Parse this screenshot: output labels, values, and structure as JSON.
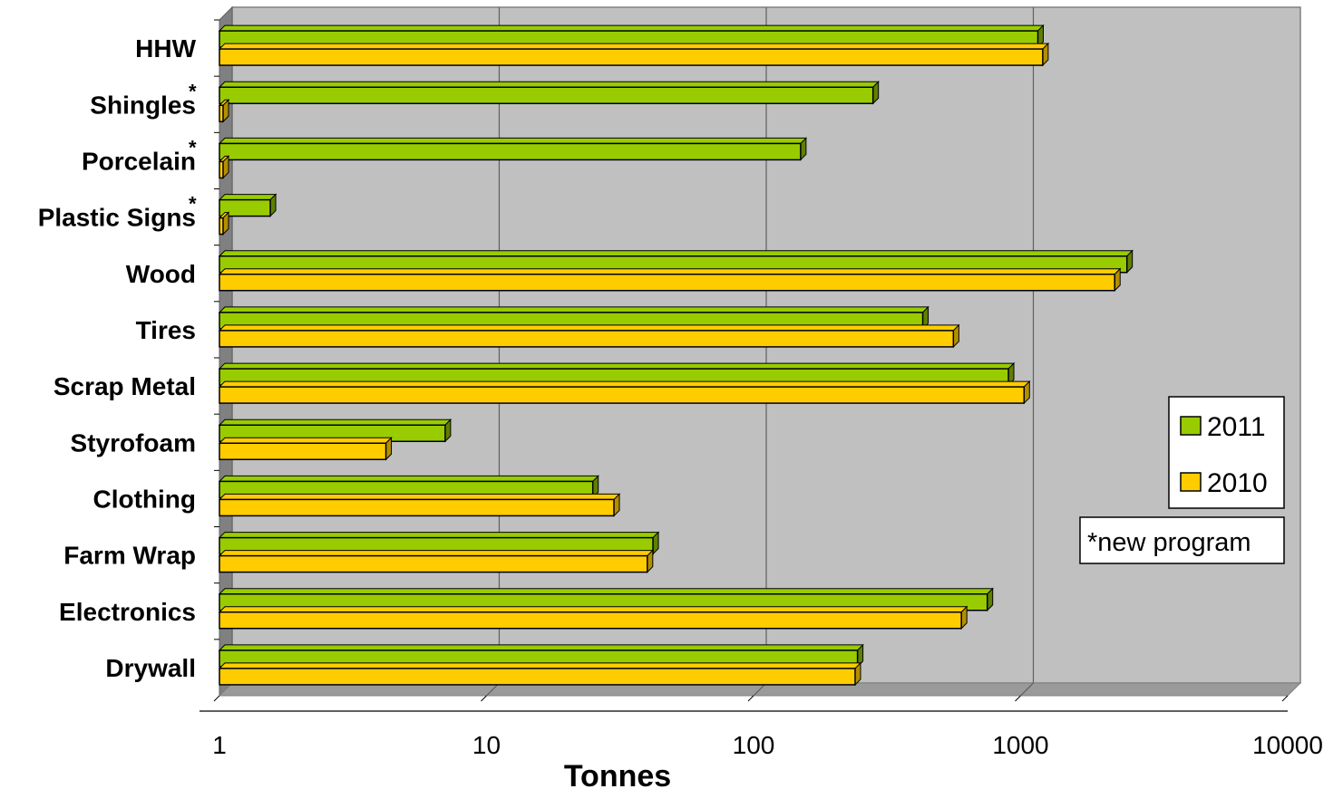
{
  "chart_data": {
    "type": "bar",
    "orientation": "horizontal",
    "categories": [
      "HHW",
      "Shingles",
      "Porcelain",
      "Plastic Signs",
      "Wood",
      "Tires",
      "Scrap Metal",
      "Styrofoam",
      "Clothing",
      "Farm Wrap",
      "Electronics",
      "Drywall"
    ],
    "new_program_marked": [
      false,
      true,
      true,
      true,
      false,
      false,
      false,
      false,
      false,
      false,
      false,
      false
    ],
    "asterisk": "*",
    "series": [
      {
        "name": "2011",
        "color": "#99cc00",
        "values": [
          1160,
          280,
          150,
          1.55,
          2500,
          430,
          900,
          7,
          25,
          42,
          750,
          245
        ]
      },
      {
        "name": "2010",
        "color": "#ffcc00",
        "values": [
          1210,
          1.03,
          1.03,
          1.03,
          2250,
          560,
          1030,
          4.2,
          30,
          40,
          600,
          240
        ]
      }
    ],
    "xlabel": "Tonnes",
    "xscale": "log",
    "xlim": [
      1,
      10000
    ],
    "xticks": [
      "1",
      "10",
      "100",
      "1000",
      "10000"
    ],
    "grid": true,
    "legend": {
      "position": "right",
      "entries": [
        "2011",
        "2010"
      ]
    },
    "note": "*new program",
    "colors": {
      "plot_background": "#c0c0c0",
      "wall": "#808080",
      "gridline": "#606060"
    }
  }
}
